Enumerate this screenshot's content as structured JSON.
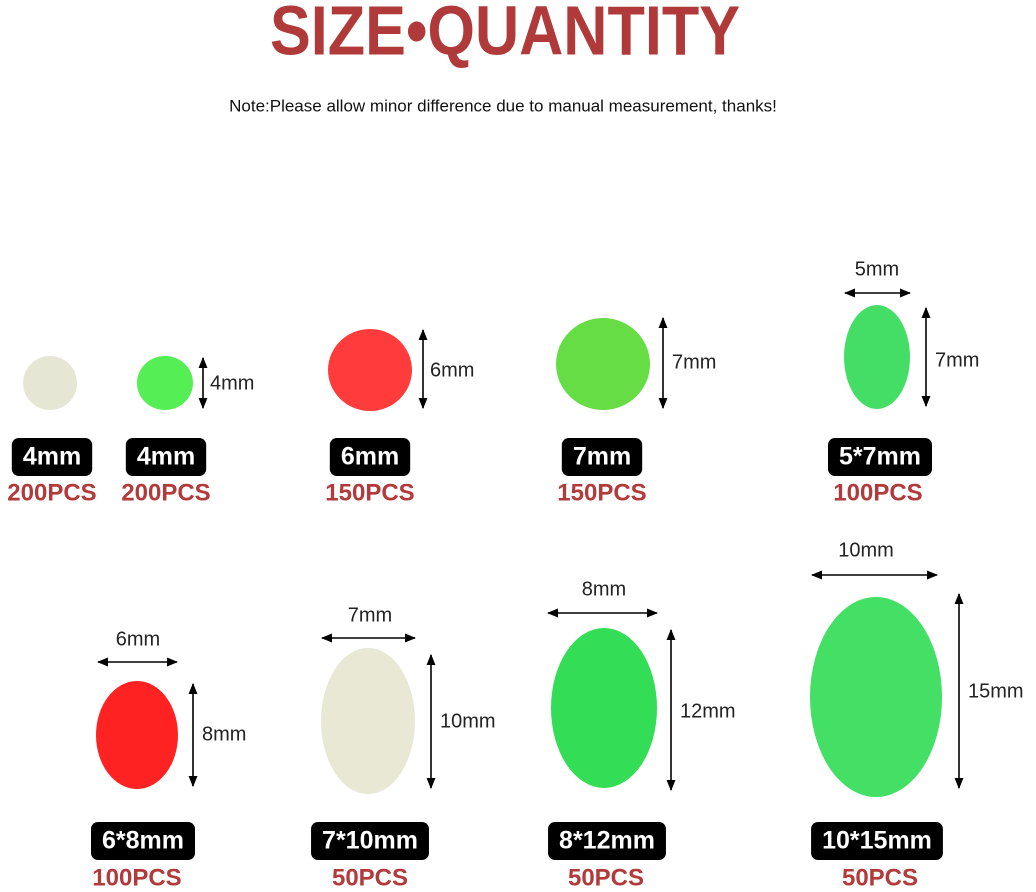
{
  "header": {
    "title": "SIZE•QUANTITY",
    "note": "Note:Please allow minor difference due to manual measurement, thanks!"
  },
  "items": [
    {
      "size": "4mm",
      "quantity": "200PCS"
    },
    {
      "size": "4mm",
      "quantity": "200PCS",
      "height": "4mm"
    },
    {
      "size": "6mm",
      "quantity": "150PCS",
      "height": "6mm"
    },
    {
      "size": "7mm",
      "quantity": "150PCS",
      "height": "7mm"
    },
    {
      "size": "5*7mm",
      "quantity": "100PCS",
      "width": "5mm",
      "height": "7mm"
    },
    {
      "size": "6*8mm",
      "quantity": "100PCS",
      "width": "6mm",
      "height": "8mm"
    },
    {
      "size": "7*10mm",
      "quantity": "50PCS",
      "width": "7mm",
      "height": "10mm"
    },
    {
      "size": "8*12mm",
      "quantity": "50PCS",
      "width": "8mm",
      "height": "12mm"
    },
    {
      "size": "10*15mm",
      "quantity": "50PCS",
      "width": "10mm",
      "height": "15mm"
    }
  ]
}
